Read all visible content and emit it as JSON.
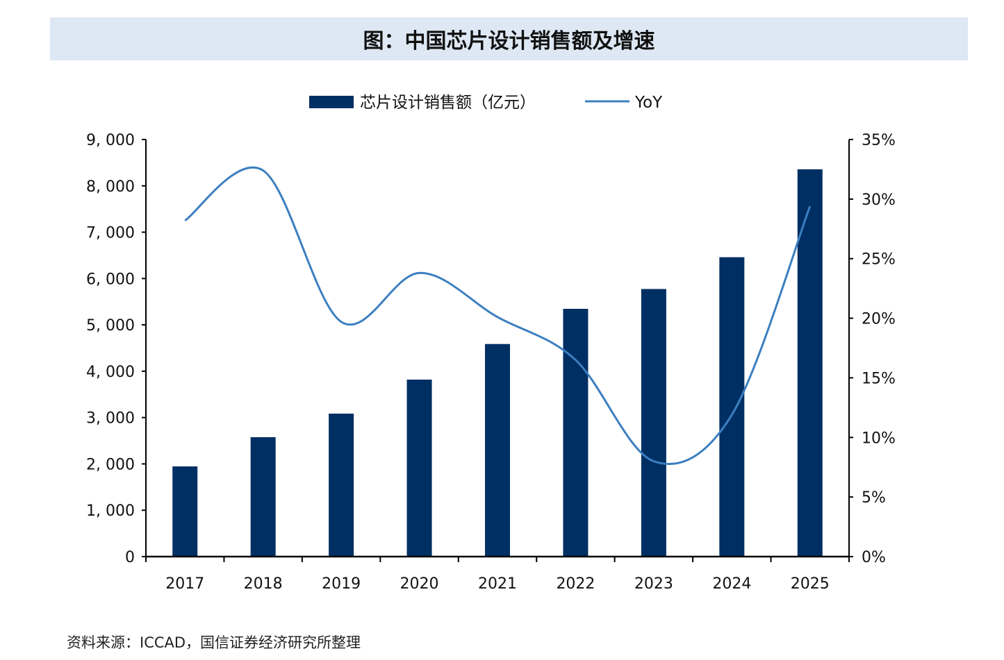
{
  "title": "图：中国芯片设计销售额及增速",
  "source": "资料来源：ICCAD，国信证券经济研究所整理",
  "chart_data": {
    "type": "bar+line",
    "title": "图：中国芯片设计销售额及增速",
    "categories": [
      "2017",
      "2018",
      "2019",
      "2020",
      "2021",
      "2022",
      "2023",
      "2024",
      "2025"
    ],
    "series": [
      {
        "name": "芯片设计销售额（亿元）",
        "type": "bar",
        "axis": "left",
        "color": "#002f63",
        "values": [
          1946,
          2577,
          3085,
          3819,
          4587,
          5346,
          5774,
          6460,
          8357
        ]
      },
      {
        "name": "YoY",
        "type": "line",
        "axis": "right",
        "color": "#3c7fc0",
        "smooth": true,
        "values": [
          28.2,
          32.4,
          19.7,
          23.8,
          20.1,
          16.5,
          8.0,
          11.9,
          29.4
        ]
      }
    ],
    "y_left": {
      "range": [
        0,
        9000
      ],
      "ticks": [
        "0",
        "1, 000",
        "2, 000",
        "3, 000",
        "4, 000",
        "5, 000",
        "6, 000",
        "7, 000",
        "8, 000",
        "9, 000"
      ]
    },
    "y_right": {
      "range": [
        0,
        35
      ],
      "unit": "%",
      "ticks": [
        "0%",
        "5%",
        "10%",
        "15%",
        "20%",
        "25%",
        "30%",
        "35%"
      ]
    },
    "legend": "top-center",
    "grid": false
  }
}
